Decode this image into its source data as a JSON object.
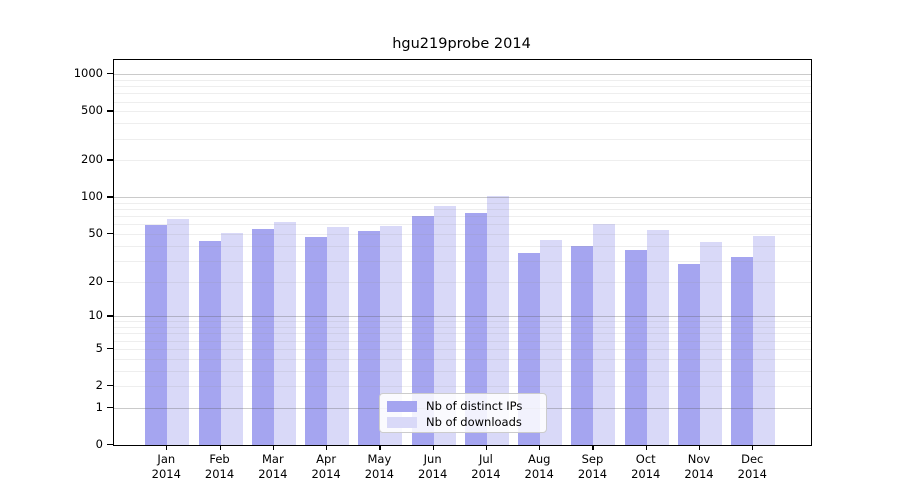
{
  "title": "hgu219probe 2014",
  "chart_data": {
    "type": "bar",
    "title": "hgu219probe 2014",
    "categories": [
      "Jan",
      "Feb",
      "Mar",
      "Apr",
      "May",
      "Jun",
      "Jul",
      "Aug",
      "Sep",
      "Oct",
      "Nov",
      "Dec"
    ],
    "category_year": "2014",
    "series": [
      {
        "name": "Nb of distinct IPs",
        "color": "#a5a5f0",
        "values": [
          59,
          44,
          55,
          47,
          53,
          70,
          75,
          35,
          40,
          37,
          28,
          32
        ]
      },
      {
        "name": "Nb of downloads",
        "color": "#d9d9f8",
        "values": [
          66,
          51,
          63,
          57,
          58,
          85,
          103,
          45,
          60,
          54,
          43,
          48
        ]
      }
    ],
    "y_ticks": [
      0,
      1,
      2,
      5,
      10,
      20,
      50,
      100,
      200,
      500,
      1000
    ],
    "y_scale": "log10(1+x)",
    "ylim": [
      0,
      1300
    ],
    "xlabel": "",
    "ylabel": "",
    "grid": true,
    "gridlines_over_bars": true,
    "legend_position": "bottom-center",
    "colors": {
      "major_grid": "#c8c8c8",
      "minor_grid": "#ebebeb",
      "axis": "#000000",
      "background": "#ffffff",
      "text": "#000000"
    }
  }
}
